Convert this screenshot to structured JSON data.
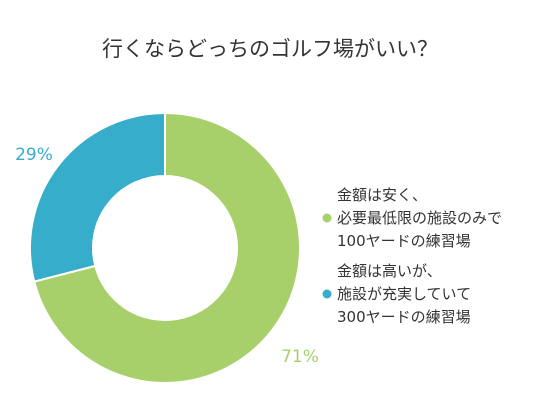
{
  "chart_data": {
    "type": "pie",
    "title": "行くならどっちのゴルフ場がいい？",
    "slices": [
      {
        "label_lines": [
          "金額は安く、",
          "必要最低限の施設のみで",
          "100ヤードの練習場"
        ],
        "value": 71,
        "value_label": "71%",
        "color": "#a8d06a"
      },
      {
        "label_lines": [
          "金額は高いが、",
          "施設が充実していて",
          "300ヤードの練習場"
        ],
        "value": 29,
        "value_label": "29%",
        "color": "#36adcb"
      }
    ],
    "legend_position": "right"
  }
}
